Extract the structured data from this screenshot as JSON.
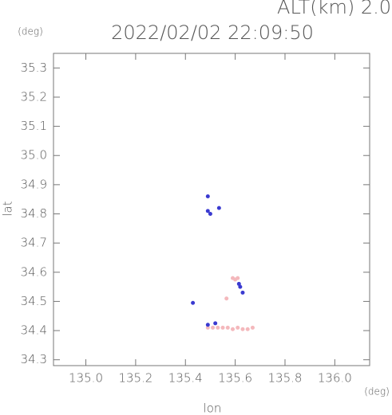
{
  "chart_data": {
    "type": "scatter",
    "title": "2022/02/02 22:09:50",
    "subtitle": "ALT(km) 2.0",
    "x_label": "lon",
    "x_unit": "(deg)",
    "y_label": "lat",
    "y_unit": "(deg)",
    "xlim": [
      134.87,
      136.14
    ],
    "ylim": [
      34.28,
      35.35
    ],
    "xticks": [
      {
        "value": 135.0,
        "label": "135.0"
      },
      135.2,
      135.4,
      135.6,
      135.8,
      {
        "value": 136.0,
        "label": "136.0"
      }
    ],
    "yticks": [
      35.3,
      35.2,
      35.1,
      {
        "value": 35.0,
        "label": "35.0"
      },
      34.9,
      34.8,
      34.7,
      34.6,
      34.5,
      34.4,
      34.3
    ],
    "series": [
      {
        "color": "#f4b8bc",
        "x": [
          135.59,
          135.6,
          135.61,
          135.565,
          135.49,
          135.51,
          135.53,
          135.55,
          135.57,
          135.59,
          135.61,
          135.63,
          135.65,
          135.67
        ],
        "values": [
          34.58,
          34.575,
          34.58,
          34.51,
          34.41,
          34.41,
          34.41,
          34.41,
          34.41,
          34.405,
          34.41,
          34.405,
          34.405,
          34.41
        ]
      },
      {
        "color": "#3a3ad0",
        "x": [
          135.49,
          135.49,
          135.5,
          135.535,
          135.43,
          135.615,
          135.63,
          135.62,
          135.49,
          135.52
        ],
        "values": [
          34.86,
          34.81,
          34.8,
          34.82,
          34.495,
          34.56,
          34.53,
          34.55,
          34.42,
          34.425
        ]
      }
    ]
  }
}
